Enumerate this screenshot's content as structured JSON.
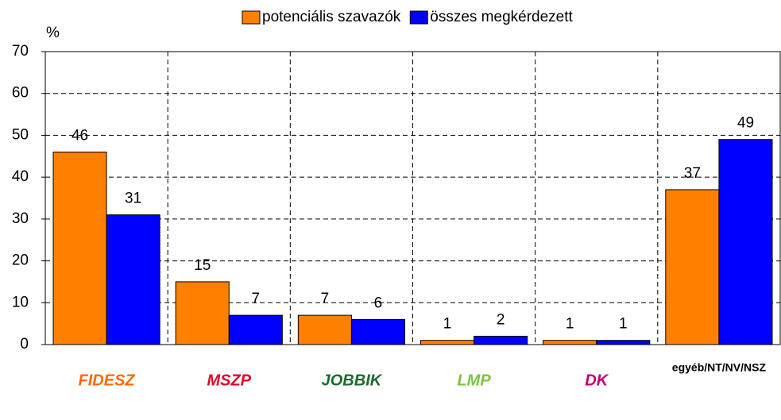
{
  "chart_data": {
    "type": "bar",
    "y_label": "%",
    "categories": [
      "FIDESZ",
      "MSZP",
      "JOBBIK",
      "LMP",
      "DK",
      "egyéb/NT/NV/NSZ"
    ],
    "series": [
      {
        "name": "potenciális szavazók",
        "color": "#ff8000",
        "values": [
          46,
          15,
          7,
          1,
          1,
          37
        ]
      },
      {
        "name": "összes megkérdezett",
        "color": "#0000ff",
        "values": [
          31,
          7,
          6,
          2,
          1,
          49
        ]
      }
    ],
    "ylim": [
      0,
      70
    ],
    "yticks": [
      0,
      10,
      20,
      30,
      40,
      50,
      60,
      70
    ],
    "grid": true,
    "legend": "top"
  }
}
